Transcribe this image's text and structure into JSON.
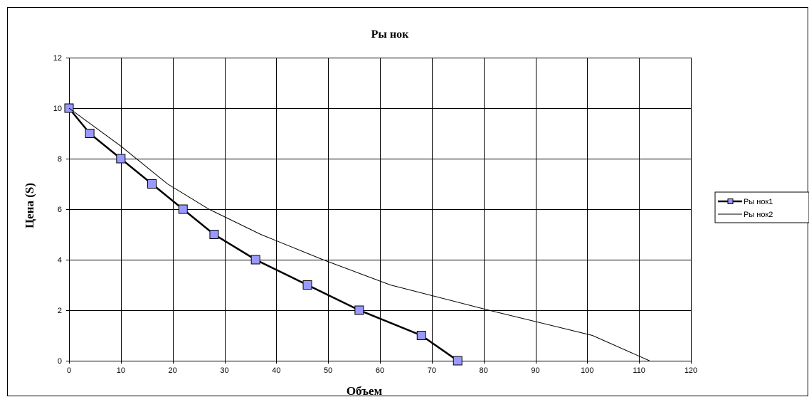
{
  "chart_data": {
    "type": "line",
    "title": "Ры нок",
    "xlabel": "Объем",
    "ylabel": "Цена (S)",
    "xlim": [
      0,
      120
    ],
    "ylim": [
      0,
      12
    ],
    "xticks": [
      0,
      10,
      20,
      30,
      40,
      50,
      60,
      70,
      80,
      90,
      100,
      110,
      120
    ],
    "yticks": [
      0,
      2,
      4,
      6,
      8,
      10,
      12
    ],
    "grid": true,
    "legend_position": "right",
    "series": [
      {
        "name": "Ры нок1",
        "color": "#000000",
        "marker": "square",
        "marker_color": "#9999ff",
        "x": [
          0,
          4,
          10,
          16,
          22,
          28,
          36,
          46,
          56,
          68,
          75
        ],
        "y": [
          10,
          9,
          8,
          7,
          6,
          5,
          4,
          3,
          2,
          1,
          0
        ]
      },
      {
        "name": "Ры нок2",
        "color": "#000000",
        "marker": "none",
        "x": [
          0,
          10,
          19,
          27,
          37,
          49,
          62,
          81,
          101,
          112
        ],
        "y": [
          10,
          8.5,
          7,
          6,
          5,
          4,
          3,
          2,
          1,
          0
        ]
      }
    ]
  }
}
